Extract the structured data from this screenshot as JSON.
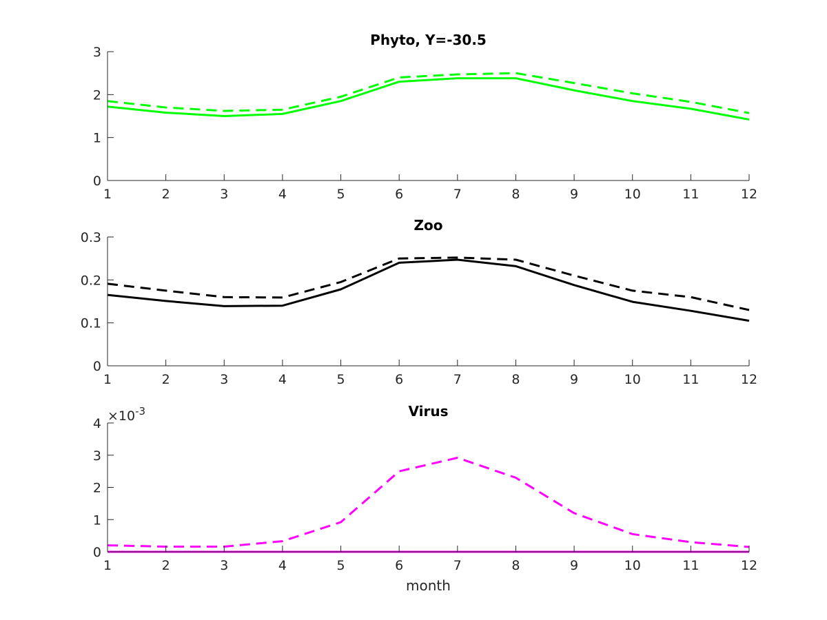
{
  "chart_data": [
    {
      "type": "line",
      "title": "Phyto, Y=-30.5",
      "xlabel": "",
      "ylabel": "",
      "xlim": [
        1,
        12
      ],
      "ylim": [
        0,
        3
      ],
      "xticks": [
        "1",
        "2",
        "3",
        "4",
        "5",
        "6",
        "7",
        "8",
        "9",
        "10",
        "11",
        "12"
      ],
      "yticks": [
        "0",
        "1",
        "2",
        "3"
      ],
      "grid": false,
      "x": [
        1,
        2,
        3,
        4,
        5,
        6,
        7,
        8,
        9,
        10,
        11,
        12
      ],
      "series": [
        {
          "name": "solid",
          "style": "solid",
          "color": "#00ff00",
          "values": [
            1.72,
            1.58,
            1.5,
            1.55,
            1.85,
            2.3,
            2.38,
            2.38,
            2.1,
            1.85,
            1.67,
            1.42
          ]
        },
        {
          "name": "dashed",
          "style": "dashed",
          "color": "#00ff00",
          "values": [
            1.85,
            1.7,
            1.62,
            1.65,
            1.95,
            2.4,
            2.47,
            2.5,
            2.27,
            2.03,
            1.83,
            1.57
          ]
        }
      ]
    },
    {
      "type": "line",
      "title": "Zoo",
      "xlabel": "",
      "ylabel": "",
      "xlim": [
        1,
        12
      ],
      "ylim": [
        0,
        0.3
      ],
      "xticks": [
        "1",
        "2",
        "3",
        "4",
        "5",
        "6",
        "7",
        "8",
        "9",
        "10",
        "11",
        "12"
      ],
      "yticks": [
        "0",
        "0.1",
        "0.2",
        "0.3"
      ],
      "grid": false,
      "x": [
        1,
        2,
        3,
        4,
        5,
        6,
        7,
        8,
        9,
        10,
        11,
        12
      ],
      "series": [
        {
          "name": "solid",
          "style": "solid",
          "color": "#000000",
          "values": [
            0.165,
            0.151,
            0.139,
            0.14,
            0.178,
            0.24,
            0.247,
            0.232,
            0.188,
            0.149,
            0.128,
            0.105
          ]
        },
        {
          "name": "dashed",
          "style": "dashed",
          "color": "#000000",
          "values": [
            0.191,
            0.175,
            0.16,
            0.159,
            0.195,
            0.25,
            0.252,
            0.247,
            0.21,
            0.175,
            0.16,
            0.13
          ]
        }
      ]
    },
    {
      "type": "line",
      "title": "Virus",
      "xlabel": "month",
      "ylabel": "",
      "xlim": [
        1,
        12
      ],
      "ylim": [
        0,
        4
      ],
      "y_exponent_label": "×10",
      "y_exponent": "-3",
      "xticks": [
        "1",
        "2",
        "3",
        "4",
        "5",
        "6",
        "7",
        "8",
        "9",
        "10",
        "11",
        "12"
      ],
      "yticks": [
        "0",
        "1",
        "2",
        "3",
        "4"
      ],
      "grid": false,
      "x": [
        1,
        2,
        3,
        4,
        5,
        6,
        7,
        8,
        9,
        10,
        11,
        12
      ],
      "series": [
        {
          "name": "solid",
          "style": "solid",
          "color": "#ff00ff",
          "values": [
            0,
            0,
            0,
            0,
            0,
            0,
            0,
            0,
            0,
            0,
            0,
            0
          ]
        },
        {
          "name": "dashed",
          "style": "dashed",
          "color": "#ff00ff",
          "values": [
            0.2,
            0.16,
            0.16,
            0.33,
            0.92,
            2.5,
            2.92,
            2.3,
            1.2,
            0.55,
            0.3,
            0.15
          ]
        }
      ]
    }
  ]
}
